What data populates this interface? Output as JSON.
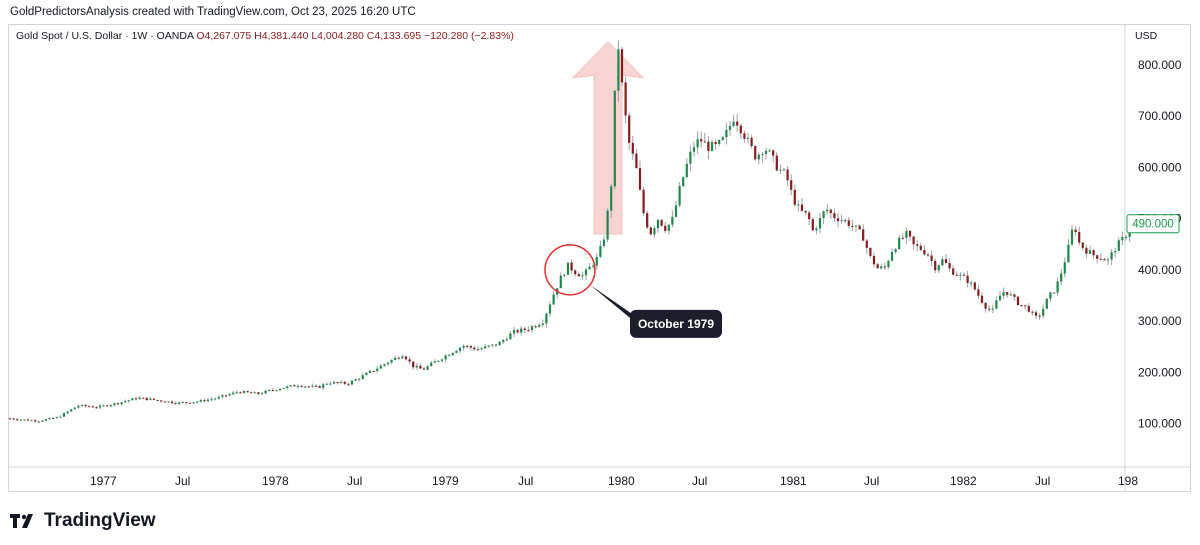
{
  "header": {
    "caption": "GoldPredictorsAnalysis created with TradingView.com, Oct 23, 2025 16:20 UTC"
  },
  "symbol": {
    "title": "Gold Spot / U.S. Dollar · 1W · OANDA",
    "ohlc": "O4,267.075  H4,381.440  L4,004.280  C4,133.695  −120.280 (−2.83%)"
  },
  "branding": {
    "logo_mark": "17",
    "name": "TradingView"
  },
  "colors": {
    "up": "#1e8a4a",
    "down": "#8b1a1a",
    "wick": "#9aa0a6",
    "arrow_fill": "#f7c6c6",
    "circle": "#e03030",
    "callout_bg": "#1c1f2b",
    "price_tag": "#1a9c4a"
  },
  "chart_data": {
    "type": "candlestick",
    "title": "Gold Spot / U.S. Dollar · 1W · OANDA",
    "currency": "USD",
    "y_ticks": [
      "100.000",
      "200.000",
      "300.000",
      "400.000",
      "500.000",
      "600.000",
      "700.000",
      "800.000"
    ],
    "x_ticks": [
      "1977",
      "Jul",
      "1978",
      "Jul",
      "1979",
      "Jul",
      "1980",
      "Jul",
      "1981",
      "Jul",
      "1982",
      "Jul",
      "198"
    ],
    "ylim": [
      15,
      880
    ],
    "last_price": "490.000",
    "annotation": {
      "label": "October 1979",
      "price": 400
    },
    "series_points": [
      [
        0,
        110
      ],
      [
        30,
        105
      ],
      [
        50,
        112
      ],
      [
        70,
        135
      ],
      [
        90,
        132
      ],
      [
        110,
        140
      ],
      [
        130,
        150
      ],
      [
        150,
        145
      ],
      [
        170,
        140
      ],
      [
        190,
        143
      ],
      [
        210,
        150
      ],
      [
        230,
        162
      ],
      [
        250,
        158
      ],
      [
        270,
        168
      ],
      [
        290,
        175
      ],
      [
        310,
        170
      ],
      [
        320,
        180
      ],
      [
        340,
        178
      ],
      [
        360,
        198
      ],
      [
        380,
        220
      ],
      [
        395,
        235
      ],
      [
        405,
        212
      ],
      [
        415,
        205
      ],
      [
        425,
        218
      ],
      [
        440,
        235
      ],
      [
        455,
        252
      ],
      [
        470,
        245
      ],
      [
        490,
        255
      ],
      [
        505,
        278
      ],
      [
        520,
        285
      ],
      [
        535,
        300
      ],
      [
        545,
        350
      ],
      [
        553,
        385
      ],
      [
        560,
        408
      ],
      [
        568,
        395
      ],
      [
        575,
        388
      ],
      [
        582,
        405
      ],
      [
        590,
        425
      ],
      [
        597,
        470
      ],
      [
        604,
        580
      ],
      [
        609,
        865
      ],
      [
        614,
        760
      ],
      [
        620,
        655
      ],
      [
        628,
        600
      ],
      [
        635,
        515
      ],
      [
        642,
        470
      ],
      [
        650,
        500
      ],
      [
        658,
        480
      ],
      [
        665,
        500
      ],
      [
        672,
        560
      ],
      [
        678,
        600
      ],
      [
        685,
        640
      ],
      [
        692,
        655
      ],
      [
        700,
        640
      ],
      [
        708,
        640
      ],
      [
        714,
        650
      ],
      [
        720,
        672
      ],
      [
        726,
        700
      ],
      [
        732,
        680
      ],
      [
        740,
        650
      ],
      [
        748,
        620
      ],
      [
        756,
        640
      ],
      [
        762,
        625
      ],
      [
        770,
        598
      ],
      [
        778,
        585
      ],
      [
        785,
        540
      ],
      [
        792,
        515
      ],
      [
        800,
        505
      ],
      [
        805,
        475
      ],
      [
        812,
        498
      ],
      [
        818,
        520
      ],
      [
        825,
        505
      ],
      [
        832,
        500
      ],
      [
        840,
        492
      ],
      [
        848,
        480
      ],
      [
        855,
        465
      ],
      [
        862,
        425
      ],
      [
        870,
        402
      ],
      [
        877,
        405
      ],
      [
        884,
        438
      ],
      [
        892,
        458
      ],
      [
        899,
        470
      ],
      [
        905,
        448
      ],
      [
        912,
        442
      ],
      [
        920,
        430
      ],
      [
        927,
        405
      ],
      [
        935,
        420
      ],
      [
        942,
        400
      ],
      [
        950,
        390
      ],
      [
        958,
        382
      ],
      [
        965,
        368
      ],
      [
        972,
        345
      ],
      [
        979,
        325
      ],
      [
        985,
        320
      ],
      [
        990,
        345
      ],
      [
        997,
        360
      ],
      [
        1005,
        345
      ],
      [
        1012,
        332
      ],
      [
        1020,
        325
      ],
      [
        1027,
        305
      ],
      [
        1033,
        315
      ],
      [
        1040,
        345
      ],
      [
        1048,
        365
      ],
      [
        1055,
        405
      ],
      [
        1062,
        455
      ],
      [
        1066,
        495
      ],
      [
        1070,
        455
      ],
      [
        1077,
        440
      ],
      [
        1084,
        430
      ],
      [
        1092,
        425
      ],
      [
        1100,
        418
      ],
      [
        1108,
        445
      ],
      [
        1115,
        460
      ],
      [
        1122,
        482
      ]
    ]
  }
}
